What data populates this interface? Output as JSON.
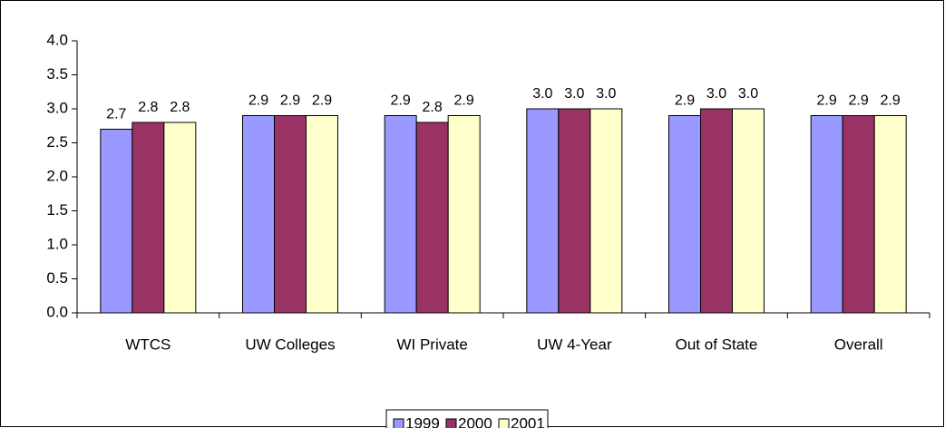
{
  "chart_data": {
    "type": "bar",
    "categories": [
      "WTCS",
      "UW Colleges",
      "WI Private",
      "UW 4-Year",
      "Out of State",
      "Overall"
    ],
    "series": [
      {
        "name": "1999",
        "color": "#9999ff",
        "values": [
          2.7,
          2.9,
          2.9,
          3.0,
          2.9,
          2.9
        ],
        "value_labels": [
          "2.7",
          "2.9",
          "2.9",
          "3.0",
          "2.9",
          "2.9"
        ]
      },
      {
        "name": "2000",
        "color": "#993366",
        "values": [
          2.8,
          2.9,
          2.8,
          3.0,
          3.0,
          2.9
        ],
        "value_labels": [
          "2.8",
          "2.9",
          "2.8",
          "3.0",
          "3.0",
          "2.9"
        ]
      },
      {
        "name": "2001",
        "color": "#ffffcc",
        "values": [
          2.8,
          2.9,
          2.9,
          3.0,
          3.0,
          2.9
        ],
        "value_labels": [
          "2.8",
          "2.9",
          "2.9",
          "3.0",
          "3.0",
          "2.9"
        ]
      }
    ],
    "ylim": [
      0,
      4
    ],
    "yticks": [
      {
        "value": 0,
        "label": "0.0"
      },
      0.5,
      {
        "value": 1,
        "label": "1.0"
      },
      1.5,
      {
        "value": 2,
        "label": "2.0"
      },
      2.5,
      {
        "value": 3,
        "label": "3.0"
      },
      3.5,
      {
        "value": 4,
        "label": "4.0"
      }
    ],
    "grid": false,
    "legend": "bottom"
  }
}
